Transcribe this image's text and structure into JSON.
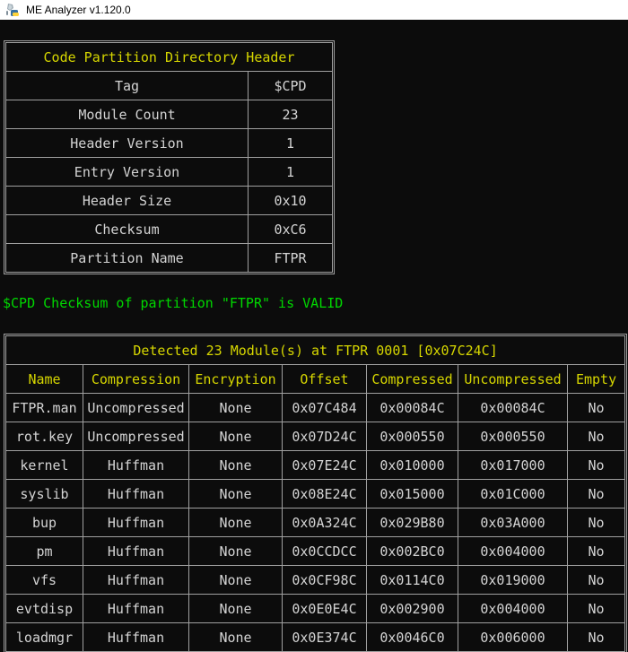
{
  "window": {
    "title": "ME Analyzer v1.120.0"
  },
  "colors": {
    "console_background": "#0c0c0c",
    "titlebar_background": "#ffffff",
    "titlebar_text": "#000000",
    "table_border": "#a0a0a0",
    "header_yellow": "#d6d600",
    "body_text": "#d4d4d4",
    "success_green": "#00d800"
  },
  "cpd_table": {
    "title": "Code Partition Directory Header",
    "rows": [
      {
        "label": "Tag",
        "value": "$CPD"
      },
      {
        "label": "Module Count",
        "value": "23"
      },
      {
        "label": "Header Version",
        "value": "1"
      },
      {
        "label": "Entry Version",
        "value": "1"
      },
      {
        "label": "Header Size",
        "value": "0x10"
      },
      {
        "label": "Checksum",
        "value": "0xC6"
      },
      {
        "label": "Partition Name",
        "value": "FTPR"
      }
    ]
  },
  "status_message": "$CPD Checksum of partition \"FTPR\" is VALID",
  "modules_table": {
    "title": "Detected 23 Module(s) at FTPR 0001 [0x07C24C]",
    "columns": [
      "Name",
      "Compression",
      "Encryption",
      "Offset",
      "Compressed",
      "Uncompressed",
      "Empty"
    ],
    "rows": [
      [
        "FTPR.man",
        "Uncompressed",
        "None",
        "0x07C484",
        "0x00084C",
        "0x00084C",
        "No"
      ],
      [
        "rot.key",
        "Uncompressed",
        "None",
        "0x07D24C",
        "0x000550",
        "0x000550",
        "No"
      ],
      [
        "kernel",
        "Huffman",
        "None",
        "0x07E24C",
        "0x010000",
        "0x017000",
        "No"
      ],
      [
        "syslib",
        "Huffman",
        "None",
        "0x08E24C",
        "0x015000",
        "0x01C000",
        "No"
      ],
      [
        "bup",
        "Huffman",
        "None",
        "0x0A324C",
        "0x029B80",
        "0x03A000",
        "No"
      ],
      [
        "pm",
        "Huffman",
        "None",
        "0x0CCDCC",
        "0x002BC0",
        "0x004000",
        "No"
      ],
      [
        "vfs",
        "Huffman",
        "None",
        "0x0CF98C",
        "0x0114C0",
        "0x019000",
        "No"
      ],
      [
        "evtdisp",
        "Huffman",
        "None",
        "0x0E0E4C",
        "0x002900",
        "0x004000",
        "No"
      ],
      [
        "loadmgr",
        "Huffman",
        "None",
        "0x0E374C",
        "0x0046C0",
        "0x006000",
        "No"
      ]
    ]
  }
}
